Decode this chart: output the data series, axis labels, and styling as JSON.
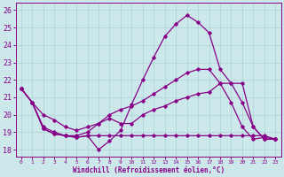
{
  "xlabel": "Windchill (Refroidissement éolien,°C)",
  "background_color": "#cce8ea",
  "line_color": "#880088",
  "ylim": [
    17.6,
    26.4
  ],
  "xlim": [
    -0.5,
    23.5
  ],
  "yticks": [
    18,
    19,
    20,
    21,
    22,
    23,
    24,
    25,
    26
  ],
  "xticks": [
    0,
    1,
    2,
    3,
    4,
    5,
    6,
    7,
    8,
    9,
    10,
    11,
    12,
    13,
    14,
    15,
    16,
    17,
    18,
    19,
    20,
    21,
    22,
    23
  ],
  "series": [
    [
      21.5,
      20.7,
      19.2,
      18.9,
      18.8,
      18.7,
      18.8,
      18.0,
      18.5,
      19.1,
      20.6,
      22.0,
      23.3,
      24.5,
      25.2,
      25.7,
      25.3,
      24.7,
      22.6,
      21.8,
      20.7,
      19.3,
      18.6,
      18.6
    ],
    [
      21.5,
      20.7,
      20.0,
      19.7,
      19.3,
      19.1,
      19.3,
      19.5,
      20.0,
      20.3,
      20.5,
      20.8,
      21.2,
      21.6,
      22.0,
      22.4,
      22.6,
      22.6,
      21.8,
      20.7,
      19.3,
      18.6,
      18.7,
      18.6
    ],
    [
      21.5,
      20.7,
      19.3,
      19.0,
      18.8,
      18.8,
      19.0,
      19.5,
      19.8,
      19.5,
      19.5,
      20.0,
      20.3,
      20.5,
      20.8,
      21.0,
      21.2,
      21.3,
      21.8,
      21.8,
      21.8,
      19.3,
      18.6,
      18.6
    ],
    [
      21.5,
      20.7,
      19.2,
      18.9,
      18.8,
      18.7,
      18.8,
      18.8,
      18.8,
      18.8,
      18.8,
      18.8,
      18.8,
      18.8,
      18.8,
      18.8,
      18.8,
      18.8,
      18.8,
      18.8,
      18.8,
      18.8,
      18.8,
      18.6
    ]
  ]
}
